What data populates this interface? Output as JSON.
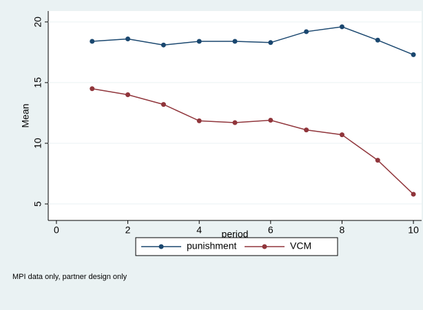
{
  "chart_data": {
    "type": "line",
    "x": [
      1,
      2,
      3,
      4,
      5,
      6,
      7,
      8,
      9,
      10
    ],
    "series": [
      {
        "name": "punishment",
        "color": "#1a476f",
        "values": [
          18.4,
          18.6,
          18.1,
          18.4,
          18.4,
          18.3,
          19.2,
          19.6,
          18.5,
          17.3
        ]
      },
      {
        "name": "VCM",
        "color": "#90353b",
        "values": [
          14.5,
          14.0,
          13.2,
          11.85,
          11.7,
          11.9,
          11.1,
          10.7,
          8.6,
          5.8
        ]
      }
    ],
    "xlabel": "period",
    "ylabel": "Mean",
    "xlim": [
      -0.23,
      10.23
    ],
    "ylim": [
      3.64,
      20.9
    ],
    "xticks": [
      0,
      2,
      4,
      6,
      8,
      10
    ],
    "yticks": [
      5,
      10,
      15,
      20
    ],
    "grid": true,
    "legend": "bottom",
    "note": "MPI data only, partner design only"
  }
}
